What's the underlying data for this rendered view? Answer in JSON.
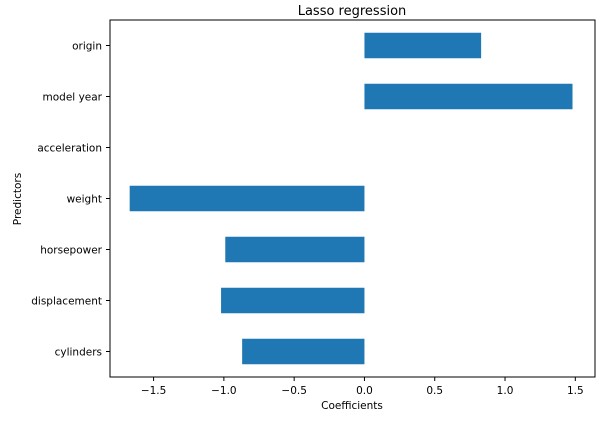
{
  "chart_data": {
    "type": "bar",
    "orientation": "horizontal",
    "title": "Lasso regression",
    "xlabel": "Coefficients",
    "ylabel": "Predictors",
    "categories": [
      "cylinders",
      "displacement",
      "horsepower",
      "weight",
      "acceleration",
      "model year",
      "origin"
    ],
    "values": [
      -0.87,
      -1.02,
      -0.99,
      -1.67,
      0.0,
      1.48,
      0.83
    ],
    "xlim": [
      -1.81,
      1.64
    ],
    "xticks": [
      -1.5,
      -1.0,
      -0.5,
      0.0,
      0.5,
      1.0,
      1.5
    ],
    "xtick_labels": [
      "−1.5",
      "−1.0",
      "−0.5",
      "0.0",
      "0.5",
      "1.0",
      "1.5"
    ],
    "grid": false,
    "legend": "none",
    "bar_color": "#1f77b4"
  }
}
